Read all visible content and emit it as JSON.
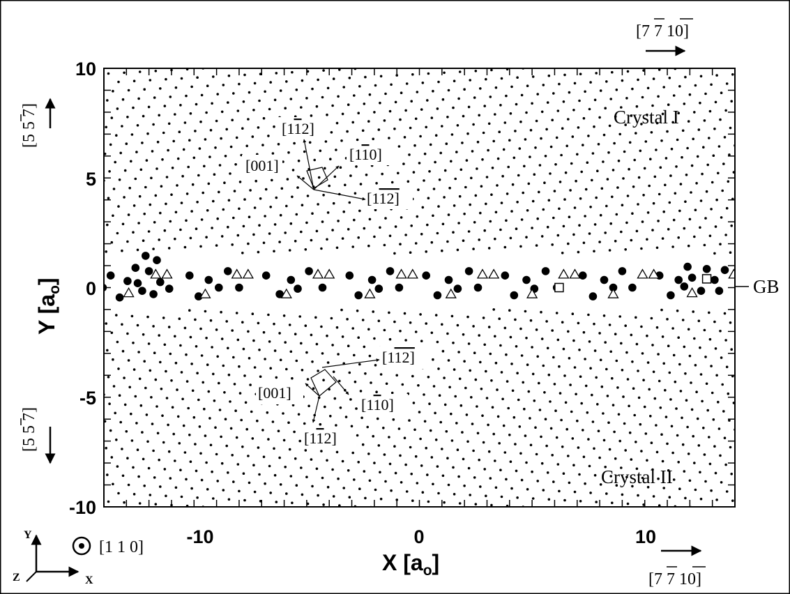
{
  "chart_data": {
    "type": "scatter",
    "xlabel": "X [a",
    "xlabel_sub": "o",
    "xlabel_end": "]",
    "ylabel": "Y [a",
    "ylabel_sub": "o",
    "ylabel_end": "]",
    "xlim": [
      -14,
      14
    ],
    "ylim": [
      -10,
      10
    ],
    "xticks": [
      -10,
      0,
      10
    ],
    "yticks": [
      10,
      5,
      0,
      -5,
      -10
    ],
    "regions": {
      "crystal_top": "Crystal I",
      "crystal_bottom": "Crystal II",
      "boundary": "GB"
    },
    "lattice_directions": {
      "top": [
        "[1",
        "1",
        "2]",
        "[001]",
        "[1",
        "1",
        "0]",
        "[1",
        "1",
        "2]"
      ],
      "bottom": [
        "[1",
        "1",
        "2]",
        "[001]",
        "[1",
        "1",
        "0]",
        "[1",
        "1",
        "2]"
      ]
    },
    "frame_directions": {
      "top_right": "[7 7 10]",
      "bottom_right": "[7 7 10]",
      "left_up": "[5 5 7]",
      "left_down": "[5 5 7]",
      "view": "[1 1 0]"
    },
    "axes_triad": {
      "x": "X",
      "y": "Y",
      "z": "Z"
    },
    "gb_atoms_circle": [
      [
        -14.05,
        0.0
      ],
      [
        -13.7,
        0.55
      ],
      [
        -13.3,
        -0.45
      ],
      [
        -12.95,
        0.3
      ],
      [
        -12.6,
        0.9
      ],
      [
        -12.5,
        0.2
      ],
      [
        -12.3,
        -0.15
      ],
      [
        -12.15,
        1.45
      ],
      [
        -12.0,
        0.75
      ],
      [
        -11.8,
        -0.3
      ],
      [
        -11.65,
        1.25
      ],
      [
        -11.5,
        0.25
      ],
      [
        -11.1,
        -0.05
      ],
      [
        -10.2,
        0.55
      ],
      [
        -9.8,
        -0.4
      ],
      [
        -9.35,
        0.35
      ],
      [
        -8.9,
        0.0
      ],
      [
        -8.5,
        0.75
      ],
      [
        -8.0,
        0.0
      ],
      [
        -6.8,
        0.55
      ],
      [
        -6.2,
        -0.3
      ],
      [
        -5.7,
        0.35
      ],
      [
        -5.4,
        -0.05
      ],
      [
        -4.9,
        0.75
      ],
      [
        -4.3,
        0.0
      ],
      [
        -3.1,
        0.55
      ],
      [
        -2.7,
        -0.35
      ],
      [
        -2.1,
        0.35
      ],
      [
        -1.8,
        -0.05
      ],
      [
        -1.3,
        0.75
      ],
      [
        -0.9,
        0.0
      ],
      [
        0.3,
        0.55
      ],
      [
        0.8,
        -0.35
      ],
      [
        1.3,
        0.35
      ],
      [
        1.7,
        -0.05
      ],
      [
        2.2,
        0.75
      ],
      [
        2.6,
        0.0
      ],
      [
        3.8,
        0.55
      ],
      [
        4.2,
        -0.35
      ],
      [
        4.75,
        0.35
      ],
      [
        5.1,
        -0.05
      ],
      [
        5.6,
        0.75
      ],
      [
        6.1,
        0.0
      ],
      [
        7.25,
        0.55
      ],
      [
        7.7,
        -0.4
      ],
      [
        8.2,
        0.35
      ],
      [
        8.6,
        0.0
      ],
      [
        9.0,
        0.75
      ],
      [
        9.45,
        0.0
      ],
      [
        10.65,
        0.55
      ],
      [
        11.15,
        -0.35
      ],
      [
        11.5,
        0.35
      ],
      [
        11.75,
        0.05
      ],
      [
        11.9,
        0.95
      ],
      [
        12.1,
        0.45
      ],
      [
        12.5,
        -0.15
      ],
      [
        12.75,
        0.85
      ],
      [
        13.1,
        0.35
      ],
      [
        13.3,
        -0.15
      ],
      [
        13.55,
        0.8
      ]
    ],
    "gb_atoms_triangle": [
      [
        -11.7,
        0.6
      ],
      [
        -11.2,
        0.6
      ],
      [
        -12.9,
        -0.25
      ],
      [
        -9.5,
        -0.3
      ],
      [
        -8.1,
        0.6
      ],
      [
        -7.6,
        0.6
      ],
      [
        -5.9,
        -0.3
      ],
      [
        -4.5,
        0.6
      ],
      [
        -4.0,
        0.6
      ],
      [
        -2.2,
        -0.3
      ],
      [
        -0.8,
        0.6
      ],
      [
        -0.3,
        0.6
      ],
      [
        1.4,
        -0.3
      ],
      [
        2.8,
        0.6
      ],
      [
        3.3,
        0.6
      ],
      [
        5.0,
        -0.3
      ],
      [
        6.4,
        0.6
      ],
      [
        6.9,
        0.6
      ],
      [
        8.6,
        -0.3
      ],
      [
        9.9,
        0.6
      ],
      [
        10.4,
        0.6
      ],
      [
        12.1,
        -0.25
      ],
      [
        13.95,
        0.6
      ]
    ],
    "gb_atoms_square": [
      [
        6.2,
        0.0
      ],
      [
        12.75,
        0.4
      ]
    ],
    "lattice": {
      "top": {
        "a1": [
          0.7,
          0.04
        ],
        "a2": [
          0.25,
          0.42
        ]
      },
      "bottom": {
        "a1": [
          0.7,
          -0.04
        ],
        "a2": [
          0.25,
          -0.42
        ]
      }
    }
  }
}
